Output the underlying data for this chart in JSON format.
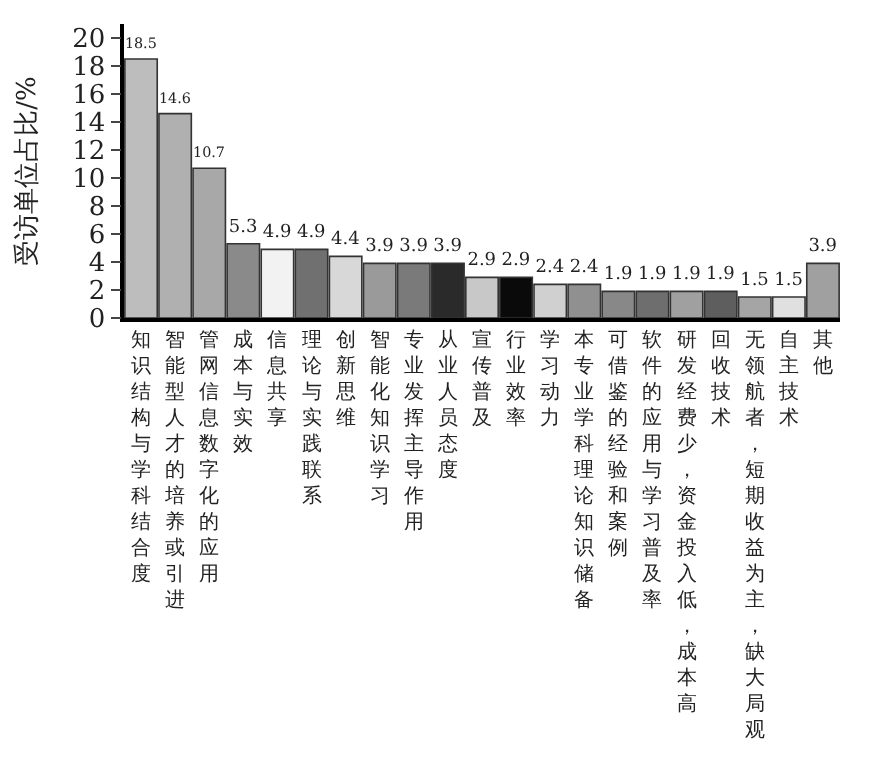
{
  "chart_data": {
    "type": "bar",
    "ylabel": "受访单位占比/%",
    "categories": [
      "知识结构与学科结合度",
      "智能型人才的培养或引进",
      "管网信息数字化的应用",
      "成本与实效",
      "信息共享",
      "理论与实践联系",
      "创新思维",
      "智能化知识学习",
      "专业发挥主导作用",
      "从业人员态度",
      "宣传普及",
      "行业效率",
      "学习动力",
      "本专业学科理论知识储备",
      "可借鉴的经验和案例",
      "软件的应用与学习普及率",
      "研发经费少，资金投入低，成本高",
      "回收技术",
      "无领航者，短期收益为主，缺大局观",
      "自主技术",
      "其他"
    ],
    "values": [
      18.5,
      14.6,
      10.7,
      5.3,
      4.9,
      4.9,
      4.4,
      3.9,
      3.9,
      3.9,
      2.9,
      2.9,
      2.4,
      2.4,
      1.9,
      1.9,
      1.9,
      1.9,
      1.5,
      1.5,
      3.9
    ],
    "colors": [
      "#bdbdbd",
      "#b0b0b0",
      "#a8a8a8",
      "#8a8a8a",
      "#f2f2f2",
      "#707070",
      "#d8d8d8",
      "#9a9a9a",
      "#7a7a7a",
      "#2a2a2a",
      "#c8c8c8",
      "#0a0a0a",
      "#d0d0d0",
      "#909090",
      "#888888",
      "#6e6e6e",
      "#a0a0a0",
      "#5e5e5e",
      "#a5a5a5",
      "#e0e0e0",
      "#a0a0a0"
    ],
    "ylim": [
      0,
      21
    ],
    "yticks": [
      0,
      2,
      4,
      6,
      8,
      10,
      12,
      14,
      16,
      18,
      20
    ],
    "data_labels": true
  }
}
